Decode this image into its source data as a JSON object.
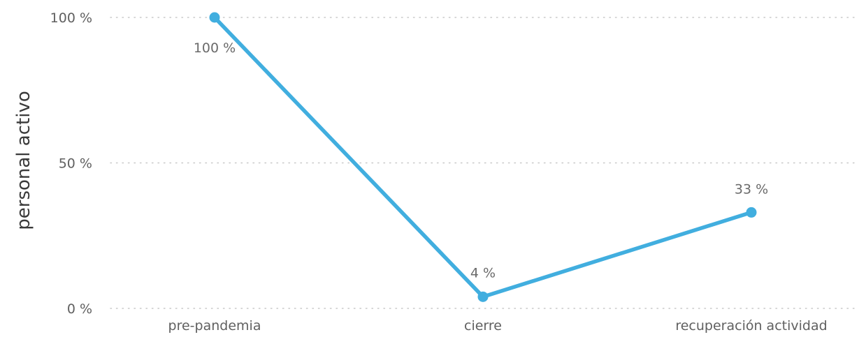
{
  "chart_data": {
    "type": "line",
    "title": "",
    "xlabel": "",
    "ylabel": "personal activo",
    "categories": [
      "pre-pandemia",
      "cierre",
      "recuperación actividad"
    ],
    "series": [
      {
        "values": [
          100,
          4,
          33
        ]
      }
    ],
    "data_labels": [
      "100 %",
      "4 %",
      "33 %"
    ],
    "y_ticks": [
      {
        "value": 0,
        "label": "0 %"
      },
      {
        "value": 50,
        "label": "50 %"
      },
      {
        "value": 100,
        "label": "100 %"
      }
    ],
    "ylim": [
      0,
      100
    ],
    "grid": true,
    "legend": "none",
    "colors": {
      "line": "#41AEDF",
      "grid": "#c8c8c8"
    }
  }
}
